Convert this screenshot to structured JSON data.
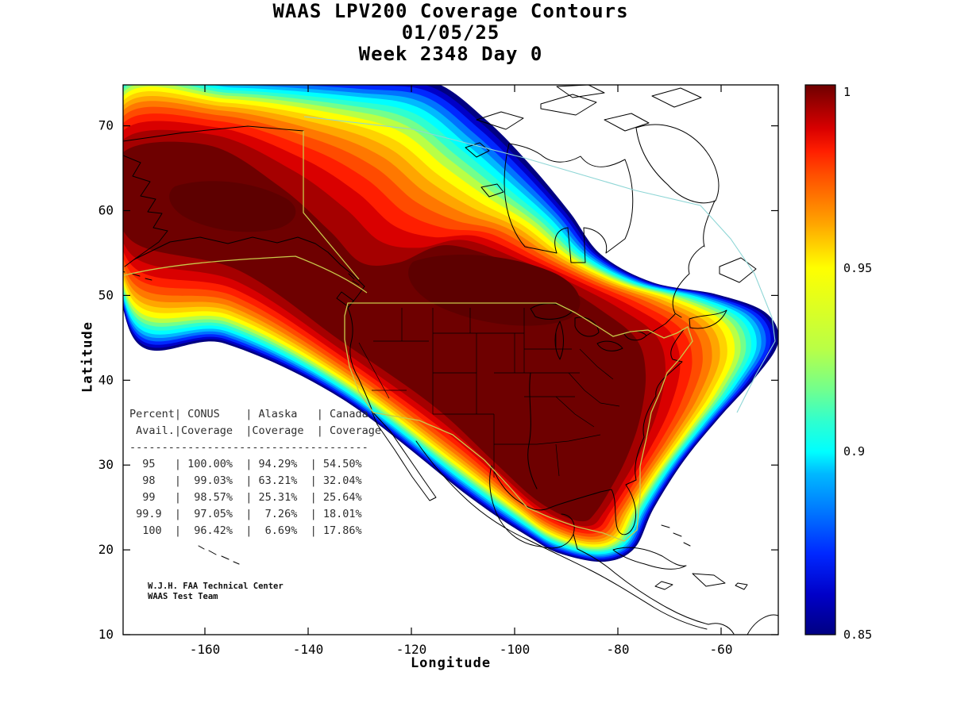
{
  "figure": {
    "title_line1": "WAAS LPV200 Coverage Contours",
    "title_line2": "01/05/25",
    "title_line3": "Week 2348 Day 0"
  },
  "axes": {
    "xlabel": "Longitude",
    "ylabel": "Latitude",
    "x_tick_labels": [
      "-160",
      "-140",
      "-120",
      "-100",
      "-80",
      "-60"
    ],
    "x_tick_values": [
      -160,
      -140,
      -120,
      -100,
      -80,
      -60
    ],
    "y_tick_labels": [
      "10",
      "20",
      "30",
      "40",
      "50",
      "60",
      "70"
    ],
    "y_tick_values": [
      10,
      20,
      30,
      40,
      50,
      60,
      70
    ]
  },
  "colorbar": {
    "tick_labels": [
      "1",
      "0.95",
      "0.9",
      "0.85"
    ],
    "tick_values": [
      1,
      0.95,
      0.9,
      0.85
    ],
    "min": 0.85,
    "max": 1
  },
  "credit_line1": "W.J.H. FAA Technical Center",
  "credit_line2": "WAAS Test Team",
  "chart_data": [
    {
      "type": "heatmap",
      "title": "WAAS LPV200 Coverage Contours, 01/05/25, Week 2348 Day 0",
      "xlabel": "Longitude",
      "ylabel": "Latitude",
      "xlim": [
        -176,
        -48
      ],
      "ylim": [
        10,
        75
      ],
      "grid": false,
      "colorbar": {
        "min": 0.85,
        "max": 1,
        "ticks": [
          1,
          0.95,
          0.9,
          0.85
        ],
        "colormap": "jet"
      },
      "levels_note": "Filled LPV200 availability contours over North America: dark-red core near 1.0 covering CONUS and Alaska, descending through jet colors to 0.85 at the outer fringe; white = below 0.85.",
      "bands": [
        {
          "color": "#000082",
          "t": 0.0,
          "level": 0.85
        },
        {
          "color": "#0000c8",
          "t": 0.03,
          "level": 0.861
        },
        {
          "color": "#0028ff",
          "t": 0.06,
          "level": 0.872
        },
        {
          "color": "#0073ff",
          "t": 0.095,
          "level": 0.883
        },
        {
          "color": "#00b9ff",
          "t": 0.13,
          "level": 0.894
        },
        {
          "color": "#00ffff",
          "t": 0.165,
          "level": 0.9
        },
        {
          "color": "#2effd0",
          "t": 0.205,
          "level": 0.908
        },
        {
          "color": "#73ff8c",
          "t": 0.245,
          "level": 0.917
        },
        {
          "color": "#b9ff46",
          "t": 0.285,
          "level": 0.928
        },
        {
          "color": "#ffff00",
          "t": 0.33,
          "level": 0.95
        },
        {
          "color": "#ffd200",
          "t": 0.385,
          "level": 0.956
        },
        {
          "color": "#ffa500",
          "t": 0.44,
          "level": 0.962
        },
        {
          "color": "#ff7800",
          "t": 0.5,
          "level": 0.969
        },
        {
          "color": "#ff4b00",
          "t": 0.57,
          "level": 0.976
        },
        {
          "color": "#ff1e00",
          "t": 0.65,
          "level": 0.982
        },
        {
          "color": "#d90000",
          "t": 0.74,
          "level": 0.988
        },
        {
          "color": "#a50000",
          "t": 0.85,
          "level": 0.994
        },
        {
          "color": "#6e0000",
          "t": 1.0,
          "level": 1.0
        }
      ]
    },
    {
      "type": "table",
      "columns": [
        "Percent Avail.",
        "CONUS Coverage",
        "Alaska Coverage",
        "Canada Coverage"
      ],
      "rows": [
        [
          "95",
          "100.00%",
          "94.29%",
          "54.50%"
        ],
        [
          "98",
          "99.03%",
          "63.21%",
          "32.04%"
        ],
        [
          "99",
          "98.57%",
          "25.31%",
          "25.64%"
        ],
        [
          "99.9",
          "97.05%",
          "7.26%",
          "18.01%"
        ],
        [
          "100",
          "96.42%",
          "6.69%",
          "17.86%"
        ]
      ]
    }
  ]
}
